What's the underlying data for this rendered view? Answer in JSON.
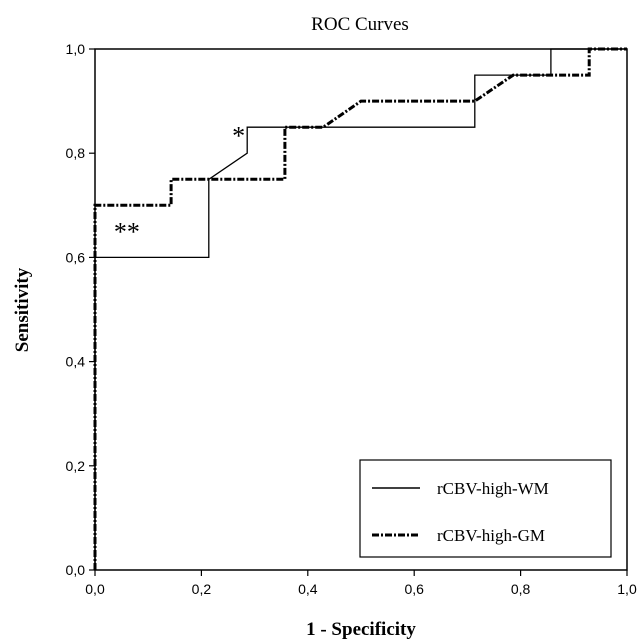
{
  "chart_data": {
    "type": "line",
    "title": "ROC Curves",
    "xlabel": "1 - Specificity",
    "ylabel": "Sensitivity",
    "xlim": [
      0,
      1
    ],
    "ylim": [
      0,
      1
    ],
    "x_ticks": [
      "0,0",
      "0,2",
      "0,4",
      "0,6",
      "0,8",
      "1,0"
    ],
    "y_ticks": [
      "0,0",
      "0,2",
      "0,4",
      "0,6",
      "0,8",
      "1,0"
    ],
    "grid": false,
    "legend_position": "bottom-right",
    "series": [
      {
        "name": "rCBV-high-WM",
        "style": "solid",
        "color": "#000000",
        "points": [
          [
            0,
            0
          ],
          [
            0,
            0.6
          ],
          [
            0.214,
            0.6
          ],
          [
            0.214,
            0.75
          ],
          [
            0.286,
            0.8
          ],
          [
            0.286,
            0.85
          ],
          [
            0.714,
            0.85
          ],
          [
            0.714,
            0.95
          ],
          [
            0.857,
            0.95
          ],
          [
            0.857,
            1.0
          ],
          [
            1.0,
            1.0
          ]
        ]
      },
      {
        "name": "rCBV-high-GM",
        "style": "dash-dot",
        "color": "#000000",
        "points": [
          [
            0,
            0
          ],
          [
            0,
            0.7
          ],
          [
            0.143,
            0.7
          ],
          [
            0.143,
            0.75
          ],
          [
            0.357,
            0.75
          ],
          [
            0.357,
            0.85
          ],
          [
            0.429,
            0.85
          ],
          [
            0.5,
            0.9
          ],
          [
            0.714,
            0.9
          ],
          [
            0.786,
            0.95
          ],
          [
            0.929,
            0.95
          ],
          [
            0.929,
            1.0
          ],
          [
            1.0,
            1.0
          ]
        ]
      }
    ],
    "annotations": [
      {
        "text": "*",
        "x": 0.27,
        "y": 0.84
      },
      {
        "text": "**",
        "x": 0.06,
        "y": 0.655
      }
    ]
  }
}
